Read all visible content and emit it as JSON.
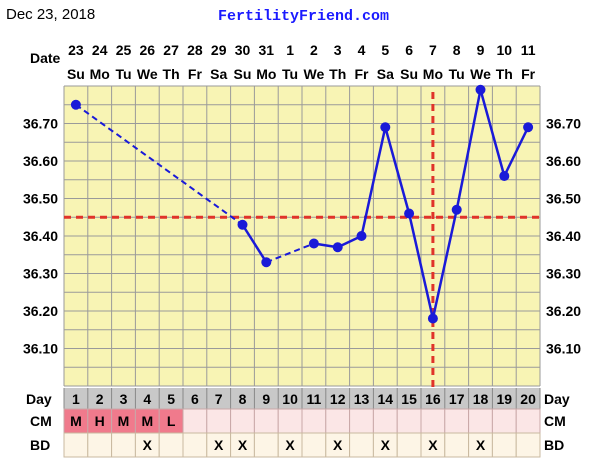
{
  "header": {
    "date": "Dec 23, 2018",
    "site": "FertilityFriend.com"
  },
  "row_labels": {
    "date": "Date",
    "day": "Day",
    "cm": "CM",
    "bd": "BD"
  },
  "colors": {
    "plot_bg": "#f8f4b4",
    "grid": "#9a9a9a",
    "line": "#1a1ad8",
    "coverline": "#e0332a",
    "day_row_bg": "#c8c8c8",
    "cm_filled_bg": "#f07a8c",
    "cm_empty_bg": "#fbe6e6",
    "bd_bg": "#fdf5e6"
  },
  "chart_data": {
    "type": "line",
    "dates": [
      "23",
      "24",
      "25",
      "26",
      "27",
      "28",
      "29",
      "30",
      "31",
      "1",
      "2",
      "3",
      "4",
      "5",
      "6",
      "7",
      "8",
      "9",
      "10",
      "11"
    ],
    "weekdays": [
      "Su",
      "Mo",
      "Tu",
      "We",
      "Th",
      "Fr",
      "Sa",
      "Su",
      "Mo",
      "Tu",
      "We",
      "Th",
      "Fr",
      "Sa",
      "Su",
      "Mo",
      "Tu",
      "We",
      "Th",
      "Fr"
    ],
    "cycle_days": [
      "1",
      "2",
      "3",
      "4",
      "5",
      "6",
      "7",
      "8",
      "9",
      "10",
      "11",
      "12",
      "13",
      "14",
      "15",
      "16",
      "17",
      "18",
      "19",
      "20"
    ],
    "temperatures": [
      36.75,
      null,
      null,
      null,
      null,
      null,
      null,
      36.43,
      36.33,
      null,
      36.38,
      36.37,
      36.4,
      36.69,
      36.46,
      36.18,
      36.47,
      36.79,
      36.56,
      36.69
    ],
    "y_ticks": [
      "36.10",
      "36.20",
      "36.30",
      "36.40",
      "36.50",
      "36.60",
      "36.70"
    ],
    "ylim": [
      36.0,
      36.8
    ],
    "coverline": 36.45,
    "ovulation_day": 16,
    "cm": [
      "M",
      "H",
      "M",
      "M",
      "L",
      "",
      "",
      "",
      "",
      "",
      "",
      "",
      "",
      "",
      "",
      "",
      "",
      "",
      "",
      ""
    ],
    "bd": [
      "",
      "",
      "",
      "X",
      "",
      "",
      "X",
      "X",
      "",
      "X",
      "",
      "X",
      "",
      "X",
      "",
      "X",
      "",
      "X",
      "",
      ""
    ]
  }
}
